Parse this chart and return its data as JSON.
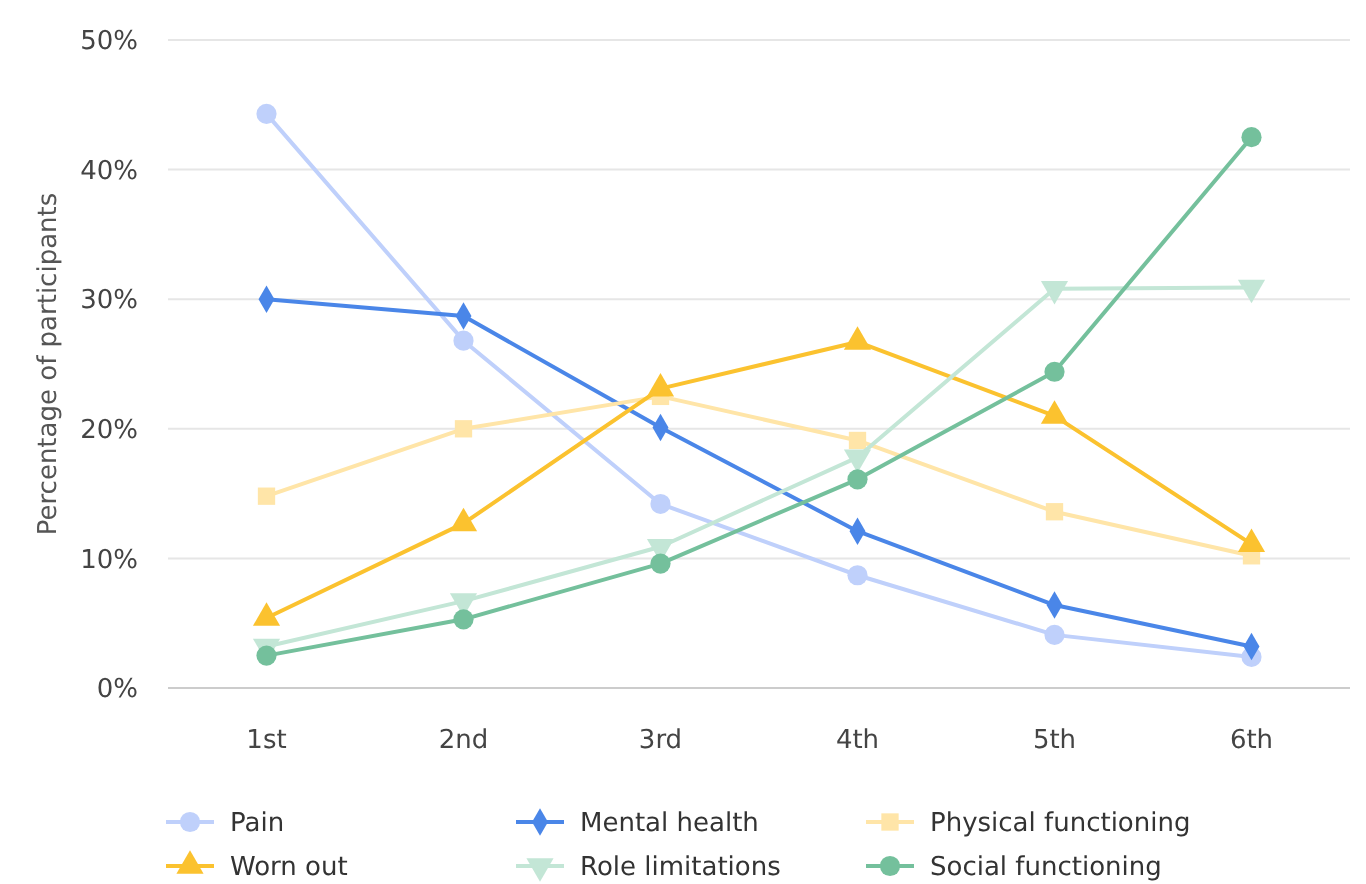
{
  "chart_data": {
    "type": "line",
    "ylabel": "Percentage of participants",
    "categories": [
      "1st",
      "2nd",
      "3rd",
      "4th",
      "5th",
      "6th"
    ],
    "ylim": [
      0,
      50
    ],
    "yticks": [
      {
        "value": 0,
        "label": "0%"
      },
      {
        "value": 10,
        "label": "10%"
      },
      {
        "value": 20,
        "label": "20%"
      },
      {
        "value": 30,
        "label": "30%"
      },
      {
        "value": 40,
        "label": "40%"
      },
      {
        "value": 50,
        "label": "50%"
      }
    ],
    "grid": "y",
    "legend": "bottom",
    "series": [
      {
        "name": "Pain",
        "color": "#bfd0fb",
        "marker": "circle",
        "values": [
          44.3,
          26.8,
          14.2,
          8.7,
          4.1,
          2.4
        ]
      },
      {
        "name": "Mental health",
        "color": "#4a86e8",
        "marker": "diamond",
        "values": [
          30.0,
          28.7,
          20.1,
          12.1,
          6.4,
          3.2
        ]
      },
      {
        "name": "Physical functioning",
        "color": "#ffe5a8",
        "marker": "square",
        "values": [
          14.8,
          20.0,
          22.5,
          19.1,
          13.6,
          10.2
        ]
      },
      {
        "name": "Worn out",
        "color": "#fbc22f",
        "marker": "triangle",
        "values": [
          5.4,
          12.7,
          23.1,
          26.7,
          21.0,
          11.1
        ]
      },
      {
        "name": "Role limitations",
        "color": "#c3e6d6",
        "marker": "triangle-down",
        "values": [
          3.2,
          6.7,
          10.9,
          17.8,
          30.8,
          30.9
        ]
      },
      {
        "name": "Social functioning",
        "color": "#74c09c",
        "marker": "circle",
        "values": [
          2.5,
          5.3,
          9.6,
          16.1,
          24.4,
          42.5
        ]
      }
    ]
  }
}
